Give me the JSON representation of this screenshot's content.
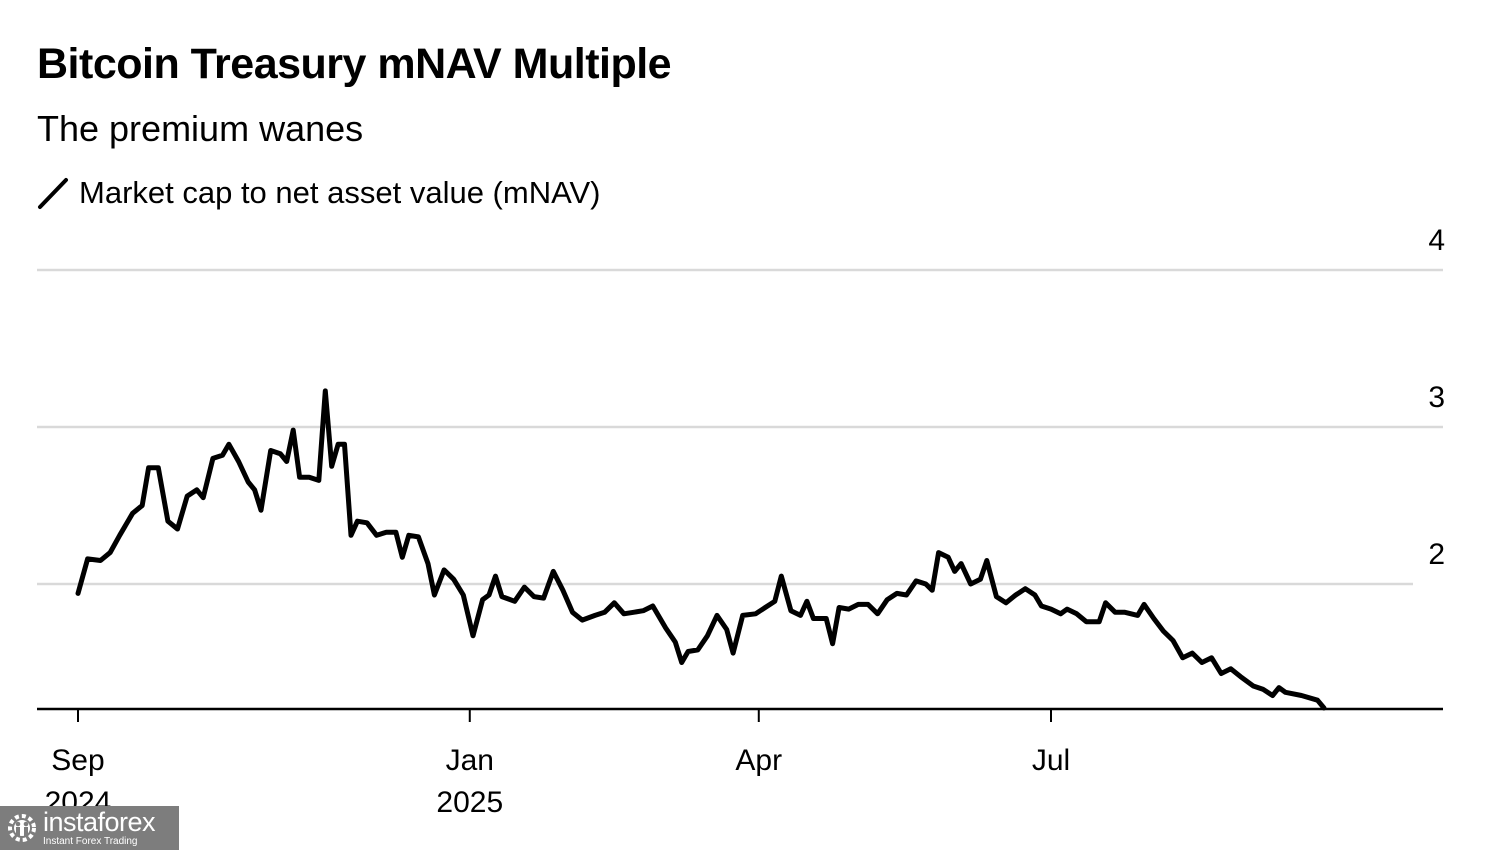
{
  "chart_data": {
    "type": "line",
    "title": "Bitcoin Treasury mNAV Multiple",
    "subtitle": "The premium wanes",
    "xlabel": "",
    "ylabel": "",
    "ylim": [
      1.2,
      4.2
    ],
    "yticks": [
      2,
      3,
      4
    ],
    "ytick_labels": [
      "2",
      "3",
      "4"
    ],
    "y_axis_side": "right",
    "grid": true,
    "legend_placement": "top-left",
    "xlim": [
      "2024-08-31",
      "2025-09-30"
    ],
    "xticks": [
      {
        "date": "2024-09-01",
        "label": "Sep",
        "sublabel": "2024"
      },
      {
        "date": "2025-01-01",
        "label": "Jan",
        "sublabel": "2025"
      },
      {
        "date": "2025-04-01",
        "label": "Apr",
        "sublabel": ""
      },
      {
        "date": "2025-07-01",
        "label": "Jul",
        "sublabel": ""
      }
    ],
    "series": [
      {
        "name": "Market cap to net asset value (mNAV)",
        "color": "#000000",
        "points": [
          [
            "2024-09-01",
            1.94
          ],
          [
            "2024-09-04",
            2.16
          ],
          [
            "2024-09-08",
            2.15
          ],
          [
            "2024-09-11",
            2.2
          ],
          [
            "2024-09-14",
            2.31
          ],
          [
            "2024-09-18",
            2.45
          ],
          [
            "2024-09-21",
            2.5
          ],
          [
            "2024-09-23",
            2.74
          ],
          [
            "2024-09-26",
            2.74
          ],
          [
            "2024-09-29",
            2.4
          ],
          [
            "2024-10-02",
            2.35
          ],
          [
            "2024-10-05",
            2.56
          ],
          [
            "2024-10-08",
            2.6
          ],
          [
            "2024-10-10",
            2.55
          ],
          [
            "2024-10-13",
            2.8
          ],
          [
            "2024-10-16",
            2.82
          ],
          [
            "2024-10-18",
            2.89
          ],
          [
            "2024-10-21",
            2.78
          ],
          [
            "2024-10-24",
            2.65
          ],
          [
            "2024-10-26",
            2.6
          ],
          [
            "2024-10-28",
            2.47
          ],
          [
            "2024-10-31",
            2.85
          ],
          [
            "2024-11-03",
            2.83
          ],
          [
            "2024-11-05",
            2.78
          ],
          [
            "2024-11-07",
            2.98
          ],
          [
            "2024-11-09",
            2.68
          ],
          [
            "2024-11-12",
            2.68
          ],
          [
            "2024-11-15",
            2.66
          ],
          [
            "2024-11-17",
            3.23
          ],
          [
            "2024-11-19",
            2.75
          ],
          [
            "2024-11-21",
            2.89
          ],
          [
            "2024-11-23",
            2.89
          ],
          [
            "2024-11-25",
            2.31
          ],
          [
            "2024-11-27",
            2.4
          ],
          [
            "2024-11-30",
            2.39
          ],
          [
            "2024-12-03",
            2.31
          ],
          [
            "2024-12-06",
            2.33
          ],
          [
            "2024-12-09",
            2.33
          ],
          [
            "2024-12-11",
            2.17
          ],
          [
            "2024-12-13",
            2.31
          ],
          [
            "2024-12-16",
            2.3
          ],
          [
            "2024-12-19",
            2.13
          ],
          [
            "2024-12-21",
            1.93
          ],
          [
            "2024-12-24",
            2.09
          ],
          [
            "2024-12-27",
            2.03
          ],
          [
            "2024-12-30",
            1.93
          ],
          [
            "2025-01-02",
            1.67
          ],
          [
            "2025-01-05",
            1.9
          ],
          [
            "2025-01-07",
            1.93
          ],
          [
            "2025-01-09",
            2.05
          ],
          [
            "2025-01-11",
            1.92
          ],
          [
            "2025-01-15",
            1.89
          ],
          [
            "2025-01-18",
            1.98
          ],
          [
            "2025-01-21",
            1.92
          ],
          [
            "2025-01-24",
            1.91
          ],
          [
            "2025-01-27",
            2.08
          ],
          [
            "2025-01-30",
            1.96
          ],
          [
            "2025-02-02",
            1.82
          ],
          [
            "2025-02-05",
            1.77
          ],
          [
            "2025-02-09",
            1.8
          ],
          [
            "2025-02-12",
            1.82
          ],
          [
            "2025-02-15",
            1.88
          ],
          [
            "2025-02-18",
            1.81
          ],
          [
            "2025-02-21",
            1.82
          ],
          [
            "2025-02-24",
            1.83
          ],
          [
            "2025-02-27",
            1.86
          ],
          [
            "2025-03-03",
            1.72
          ],
          [
            "2025-03-06",
            1.63
          ],
          [
            "2025-03-08",
            1.5
          ],
          [
            "2025-03-10",
            1.57
          ],
          [
            "2025-03-13",
            1.58
          ],
          [
            "2025-03-16",
            1.67
          ],
          [
            "2025-03-19",
            1.8
          ],
          [
            "2025-03-22",
            1.71
          ],
          [
            "2025-03-24",
            1.56
          ],
          [
            "2025-03-27",
            1.8
          ],
          [
            "2025-03-31",
            1.81
          ],
          [
            "2025-04-03",
            1.85
          ],
          [
            "2025-04-06",
            1.89
          ],
          [
            "2025-04-08",
            2.05
          ],
          [
            "2025-04-11",
            1.83
          ],
          [
            "2025-04-14",
            1.8
          ],
          [
            "2025-04-16",
            1.89
          ],
          [
            "2025-04-18",
            1.78
          ],
          [
            "2025-04-22",
            1.78
          ],
          [
            "2025-04-24",
            1.62
          ],
          [
            "2025-04-26",
            1.85
          ],
          [
            "2025-04-29",
            1.84
          ],
          [
            "2025-05-02",
            1.87
          ],
          [
            "2025-05-05",
            1.87
          ],
          [
            "2025-05-08",
            1.81
          ],
          [
            "2025-05-11",
            1.9
          ],
          [
            "2025-05-14",
            1.94
          ],
          [
            "2025-05-17",
            1.93
          ],
          [
            "2025-05-20",
            2.02
          ],
          [
            "2025-05-23",
            2.0
          ],
          [
            "2025-05-25",
            1.96
          ],
          [
            "2025-05-27",
            2.2
          ],
          [
            "2025-05-30",
            2.17
          ],
          [
            "2025-06-01",
            2.08
          ],
          [
            "2025-06-03",
            2.13
          ],
          [
            "2025-06-06",
            2.0
          ],
          [
            "2025-06-09",
            2.03
          ],
          [
            "2025-06-11",
            2.15
          ],
          [
            "2025-06-14",
            1.92
          ],
          [
            "2025-06-17",
            1.88
          ],
          [
            "2025-06-20",
            1.93
          ],
          [
            "2025-06-23",
            1.97
          ],
          [
            "2025-06-26",
            1.93
          ],
          [
            "2025-06-28",
            1.86
          ],
          [
            "2025-07-01",
            1.84
          ],
          [
            "2025-07-04",
            1.81
          ],
          [
            "2025-07-06",
            1.84
          ],
          [
            "2025-07-09",
            1.81
          ],
          [
            "2025-07-12",
            1.76
          ],
          [
            "2025-07-16",
            1.76
          ],
          [
            "2025-07-18",
            1.88
          ],
          [
            "2025-07-21",
            1.82
          ],
          [
            "2025-07-24",
            1.82
          ],
          [
            "2025-07-28",
            1.8
          ],
          [
            "2025-07-30",
            1.87
          ],
          [
            "2025-08-02",
            1.78
          ],
          [
            "2025-08-05",
            1.7
          ],
          [
            "2025-08-08",
            1.64
          ],
          [
            "2025-08-11",
            1.53
          ],
          [
            "2025-08-14",
            1.56
          ],
          [
            "2025-08-17",
            1.5
          ],
          [
            "2025-08-20",
            1.53
          ],
          [
            "2025-08-23",
            1.43
          ],
          [
            "2025-08-26",
            1.46
          ],
          [
            "2025-08-29",
            1.41
          ],
          [
            "2025-09-02",
            1.35
          ],
          [
            "2025-09-05",
            1.33
          ],
          [
            "2025-09-08",
            1.29
          ],
          [
            "2025-09-10",
            1.34
          ],
          [
            "2025-09-12",
            1.31
          ],
          [
            "2025-09-17",
            1.29
          ],
          [
            "2025-09-22",
            1.26
          ],
          [
            "2025-09-24",
            1.21
          ]
        ]
      }
    ]
  },
  "legend": {
    "label": "Market cap to net asset value (mNAV)",
    "icon": "diagonal-line-icon"
  },
  "watermark": {
    "brand": "instaforex",
    "tagline": "Instant Forex Trading",
    "icon": "gear-people-logo-icon"
  }
}
